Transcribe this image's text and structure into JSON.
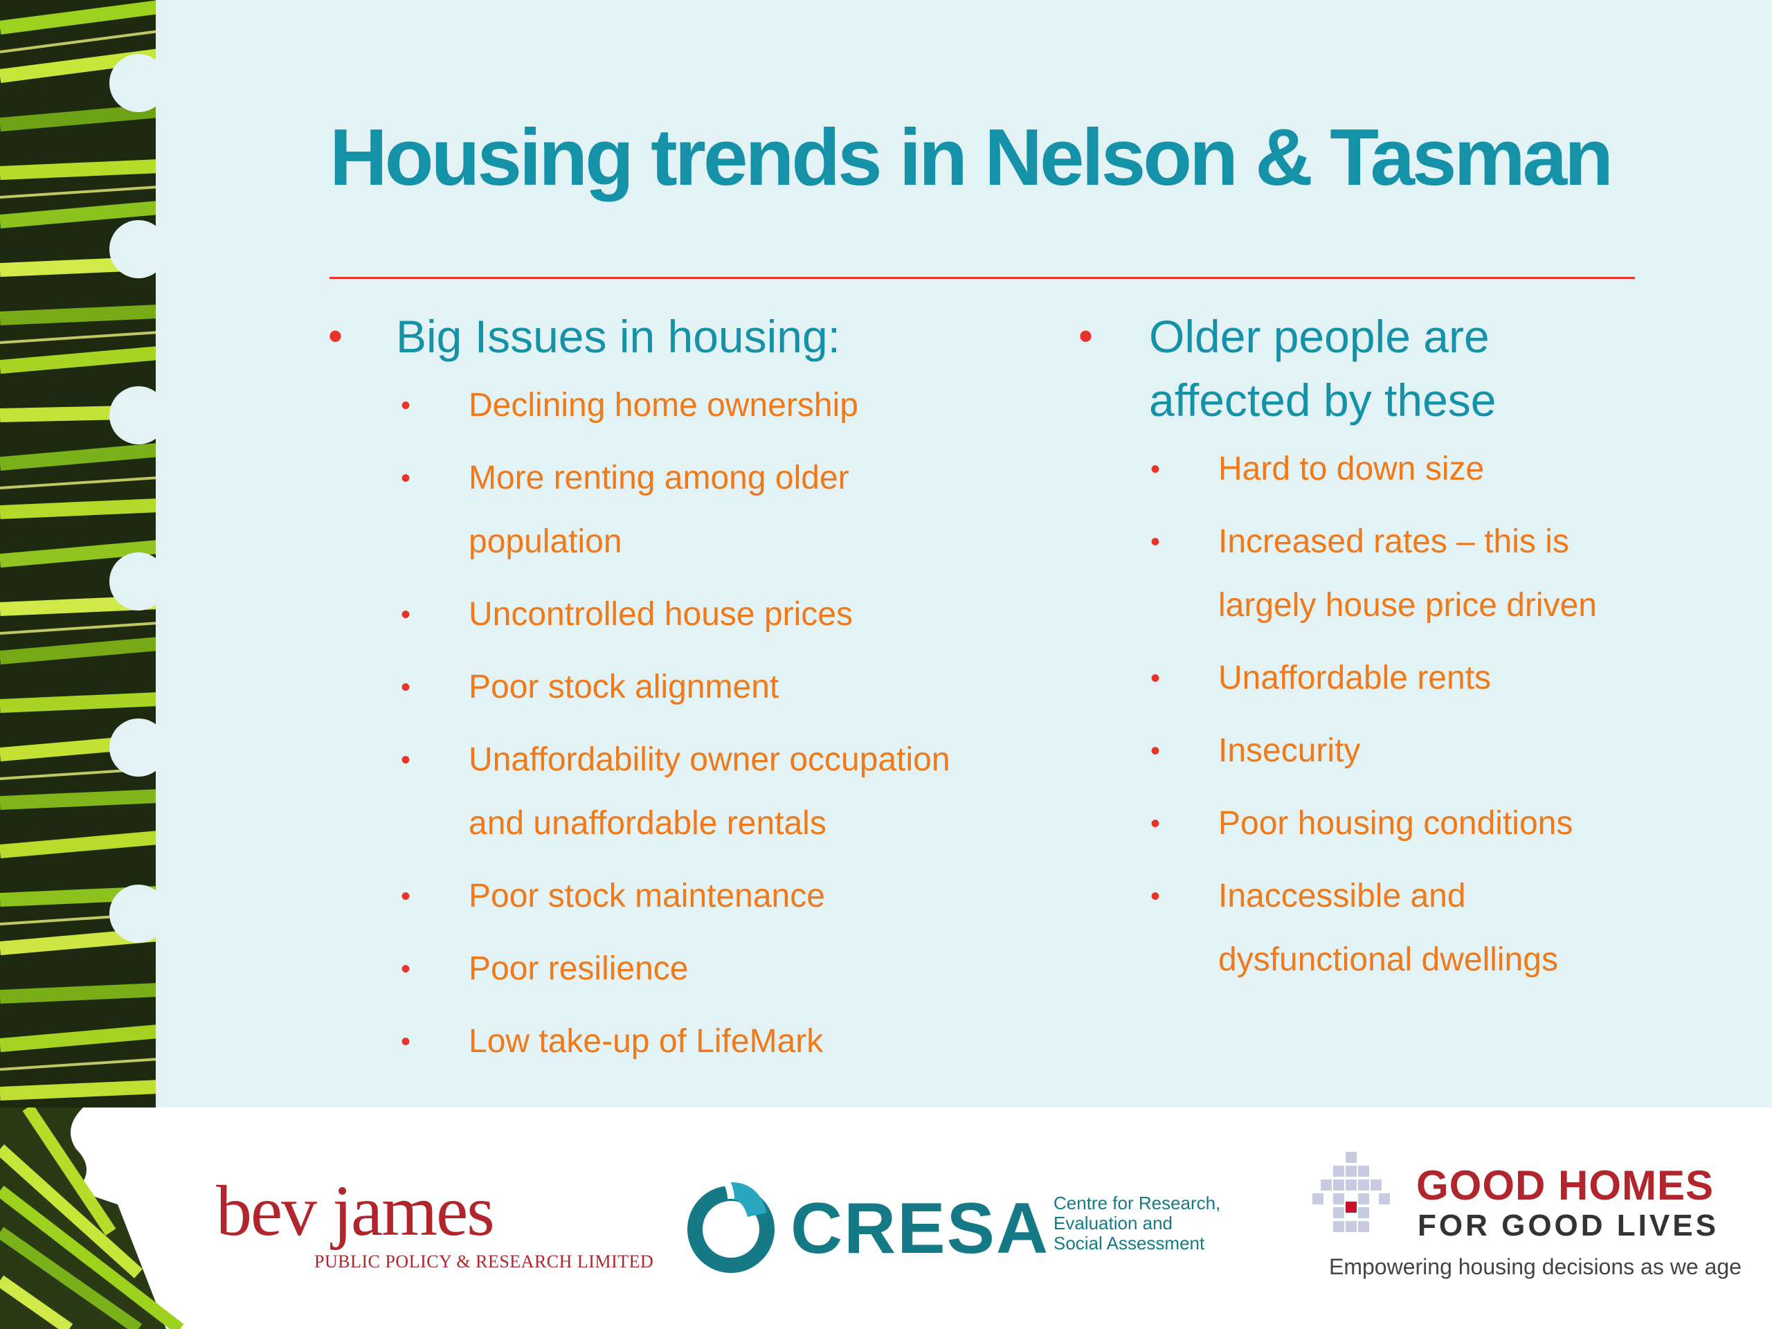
{
  "title": "Housing trends in Nelson & Tasman",
  "left_column": {
    "heading": "Big Issues in housing:",
    "items": [
      [
        "Declining home ownership"
      ],
      [
        "More renting among older",
        "population"
      ],
      [
        "Uncontrolled house prices"
      ],
      [
        "Poor stock alignment"
      ],
      [
        "Unaffordability owner occupation",
        "and unaffordable rentals"
      ],
      [
        "Poor stock maintenance"
      ],
      [
        "Poor resilience"
      ],
      [
        "Low take-up of LifeMark"
      ]
    ]
  },
  "right_column": {
    "heading_lines": [
      "Older people are",
      "affected by these"
    ],
    "items": [
      [
        "Hard to down size"
      ],
      [
        "Increased rates – this is",
        "largely house price driven"
      ],
      [
        "Unaffordable rents"
      ],
      [
        "Insecurity"
      ],
      [
        "Poor housing conditions"
      ],
      [
        "Inaccessible and",
        "dysfunctional dwellings"
      ]
    ]
  },
  "bullet_glyph": "•",
  "logos": {
    "bev_james": {
      "name": "bev james",
      "subtitle": "PUBLIC POLICY & RESEARCH LIMITED"
    },
    "cresa": {
      "name": "CRESA",
      "tagline": [
        "Centre for Research,",
        "Evaluation and",
        "Social Assessment"
      ]
    },
    "good_homes": {
      "line1": "GOOD HOMES",
      "line2": "FOR GOOD LIVES",
      "tagline": "Empowering housing decisions as we age"
    }
  },
  "colors": {
    "title": "#1591a8",
    "rule": "#e8332a",
    "sub_text": "#f07a1a",
    "bullet": "#e8332a",
    "background": "#e2f2f5",
    "logo_red": "#b0262c",
    "cresa_teal": "#167a86"
  }
}
